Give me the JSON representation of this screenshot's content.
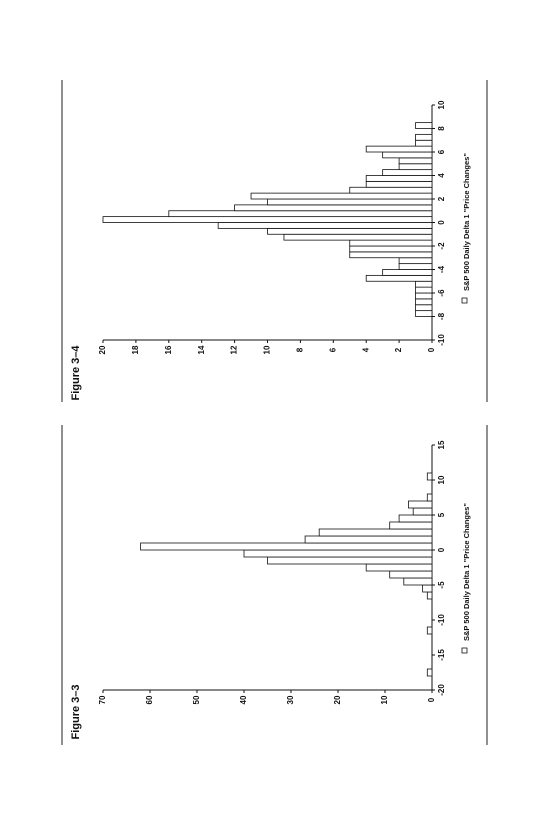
{
  "chart_data": [
    {
      "type": "histogram",
      "title": "Figure 3–3",
      "bins": [
        -20,
        -19,
        -18,
        -17,
        -16,
        -15,
        -14,
        -13,
        -12,
        -11,
        -10,
        -9,
        -8,
        -7,
        -6,
        -5,
        -4,
        -3,
        -2,
        -1,
        0,
        1,
        2,
        3,
        4,
        5,
        6,
        7,
        8,
        9,
        10,
        11,
        12,
        13,
        14,
        15
      ],
      "series": [
        {
          "name": "S&P 500 Daily Delta 1 \"Price Changes\"",
          "color": "#ffffff",
          "values": [
            0,
            0,
            1,
            0,
            0,
            0,
            0,
            0,
            1,
            0,
            0,
            0,
            0,
            1,
            2,
            6,
            9,
            14,
            35,
            40,
            62,
            27,
            24,
            9,
            7,
            4,
            5,
            1,
            0,
            0,
            1,
            0,
            0,
            0,
            0
          ]
        }
      ],
      "xlim": [
        -20,
        15
      ],
      "xticks": [
        -20,
        -15,
        -10,
        -5,
        0,
        5,
        10,
        15
      ],
      "ylim": [
        0,
        70
      ],
      "yticks": [
        0,
        10,
        20,
        30,
        40,
        50,
        60,
        70
      ]
    },
    {
      "type": "histogram",
      "title": "Figure 3–4",
      "bins": [
        -10,
        -9.5,
        -9,
        -8.5,
        -8,
        -7.5,
        -7,
        -6.5,
        -6,
        -5.5,
        -5,
        -4.5,
        -4,
        -3.5,
        -3,
        -2.5,
        -2,
        -1.5,
        -1,
        -0.5,
        0,
        0.5,
        1,
        1.5,
        2,
        2.5,
        3,
        3.5,
        4,
        4.5,
        5,
        5.5,
        6,
        6.5,
        7,
        7.5,
        8,
        8.5,
        9,
        9.5,
        10
      ],
      "series": [
        {
          "name": "S&P 500 Daily Delta 1 \"Price Changes\"",
          "color": "#ffffff",
          "values": [
            0,
            0,
            0,
            0,
            1,
            1,
            1,
            1,
            1,
            1,
            4,
            3,
            2,
            2,
            5,
            5,
            5,
            9,
            10,
            13,
            20,
            16,
            12,
            10,
            11,
            5,
            4,
            4,
            3,
            2,
            2,
            3,
            4,
            1,
            1,
            0,
            1,
            0,
            0,
            0
          ]
        }
      ],
      "xlim": [
        -10,
        10
      ],
      "xticks": [
        -10,
        -8,
        -6,
        -4,
        -2,
        0,
        2,
        4,
        6,
        8,
        10
      ],
      "ylim": [
        0,
        20
      ],
      "yticks": [
        0,
        2,
        4,
        6,
        8,
        10,
        12,
        14,
        16,
        18,
        20
      ]
    }
  ]
}
